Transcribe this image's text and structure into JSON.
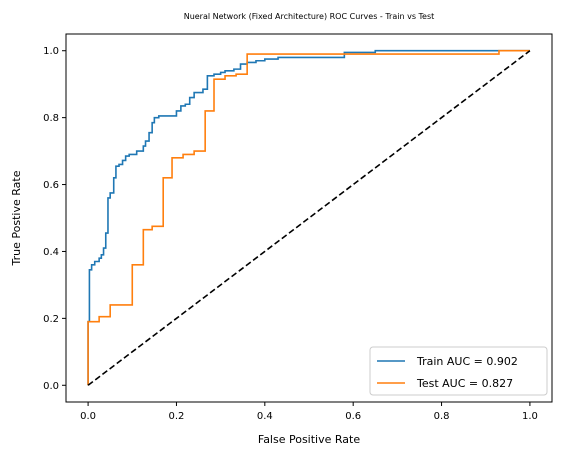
{
  "chart_data": {
    "type": "line",
    "title": "Nueral Network (Fixed Architecture) ROC Curves - Train vs Test",
    "xlabel": "False Positive Rate",
    "ylabel": "True Postive Rate",
    "xlim": [
      -0.05,
      1.05
    ],
    "ylim": [
      -0.05,
      1.05
    ],
    "xticks": [
      "0.0",
      "0.2",
      "0.4",
      "0.6",
      "0.8",
      "1.0"
    ],
    "yticks": [
      "0.0",
      "0.2",
      "0.4",
      "0.6",
      "0.8",
      "1.0"
    ],
    "grid": false,
    "legend_position": "lower-right",
    "series": [
      {
        "name": "Train AUC = 0.902",
        "color": "#1f77b4",
        "step": true,
        "points": [
          [
            0.0,
            0.0
          ],
          [
            0.0,
            0.19
          ],
          [
            0.003,
            0.19
          ],
          [
            0.003,
            0.345
          ],
          [
            0.008,
            0.345
          ],
          [
            0.008,
            0.36
          ],
          [
            0.015,
            0.36
          ],
          [
            0.015,
            0.37
          ],
          [
            0.025,
            0.37
          ],
          [
            0.025,
            0.38
          ],
          [
            0.03,
            0.38
          ],
          [
            0.03,
            0.39
          ],
          [
            0.035,
            0.39
          ],
          [
            0.035,
            0.41
          ],
          [
            0.04,
            0.41
          ],
          [
            0.04,
            0.455
          ],
          [
            0.045,
            0.455
          ],
          [
            0.045,
            0.56
          ],
          [
            0.05,
            0.56
          ],
          [
            0.05,
            0.575
          ],
          [
            0.058,
            0.575
          ],
          [
            0.058,
            0.62
          ],
          [
            0.063,
            0.62
          ],
          [
            0.063,
            0.655
          ],
          [
            0.07,
            0.655
          ],
          [
            0.07,
            0.66
          ],
          [
            0.078,
            0.66
          ],
          [
            0.078,
            0.672
          ],
          [
            0.085,
            0.672
          ],
          [
            0.085,
            0.685
          ],
          [
            0.093,
            0.685
          ],
          [
            0.093,
            0.69
          ],
          [
            0.11,
            0.69
          ],
          [
            0.11,
            0.7
          ],
          [
            0.125,
            0.7
          ],
          [
            0.125,
            0.715
          ],
          [
            0.13,
            0.715
          ],
          [
            0.13,
            0.73
          ],
          [
            0.138,
            0.73
          ],
          [
            0.138,
            0.755
          ],
          [
            0.145,
            0.755
          ],
          [
            0.145,
            0.785
          ],
          [
            0.15,
            0.785
          ],
          [
            0.15,
            0.8
          ],
          [
            0.16,
            0.8
          ],
          [
            0.16,
            0.805
          ],
          [
            0.2,
            0.805
          ],
          [
            0.2,
            0.82
          ],
          [
            0.21,
            0.82
          ],
          [
            0.21,
            0.835
          ],
          [
            0.22,
            0.835
          ],
          [
            0.22,
            0.84
          ],
          [
            0.23,
            0.84
          ],
          [
            0.23,
            0.86
          ],
          [
            0.24,
            0.86
          ],
          [
            0.24,
            0.875
          ],
          [
            0.26,
            0.875
          ],
          [
            0.26,
            0.885
          ],
          [
            0.27,
            0.885
          ],
          [
            0.27,
            0.925
          ],
          [
            0.285,
            0.925
          ],
          [
            0.285,
            0.93
          ],
          [
            0.3,
            0.93
          ],
          [
            0.3,
            0.935
          ],
          [
            0.31,
            0.935
          ],
          [
            0.31,
            0.94
          ],
          [
            0.33,
            0.94
          ],
          [
            0.33,
            0.945
          ],
          [
            0.345,
            0.945
          ],
          [
            0.345,
            0.96
          ],
          [
            0.36,
            0.96
          ],
          [
            0.36,
            0.965
          ],
          [
            0.38,
            0.965
          ],
          [
            0.38,
            0.97
          ],
          [
            0.4,
            0.97
          ],
          [
            0.4,
            0.975
          ],
          [
            0.43,
            0.975
          ],
          [
            0.43,
            0.98
          ],
          [
            0.58,
            0.98
          ],
          [
            0.58,
            0.995
          ],
          [
            0.65,
            0.995
          ],
          [
            0.65,
            1.0
          ],
          [
            1.0,
            1.0
          ]
        ]
      },
      {
        "name": "Test AUC = 0.827",
        "color": "#ff7f0e",
        "step": true,
        "points": [
          [
            0.0,
            0.0
          ],
          [
            0.0,
            0.19
          ],
          [
            0.025,
            0.19
          ],
          [
            0.025,
            0.205
          ],
          [
            0.05,
            0.205
          ],
          [
            0.05,
            0.24
          ],
          [
            0.1,
            0.24
          ],
          [
            0.1,
            0.36
          ],
          [
            0.125,
            0.36
          ],
          [
            0.125,
            0.465
          ],
          [
            0.145,
            0.465
          ],
          [
            0.145,
            0.475
          ],
          [
            0.17,
            0.475
          ],
          [
            0.17,
            0.62
          ],
          [
            0.19,
            0.62
          ],
          [
            0.19,
            0.68
          ],
          [
            0.215,
            0.68
          ],
          [
            0.215,
            0.69
          ],
          [
            0.24,
            0.69
          ],
          [
            0.24,
            0.7
          ],
          [
            0.265,
            0.7
          ],
          [
            0.265,
            0.82
          ],
          [
            0.285,
            0.82
          ],
          [
            0.285,
            0.915
          ],
          [
            0.31,
            0.915
          ],
          [
            0.31,
            0.925
          ],
          [
            0.335,
            0.925
          ],
          [
            0.335,
            0.93
          ],
          [
            0.36,
            0.93
          ],
          [
            0.36,
            0.99
          ],
          [
            0.93,
            0.99
          ],
          [
            0.93,
            1.0
          ],
          [
            1.0,
            1.0
          ]
        ]
      },
      {
        "name": "",
        "color": "#000000",
        "dashed": true,
        "points": [
          [
            0.0,
            0.0
          ],
          [
            1.0,
            1.0
          ]
        ]
      }
    ]
  }
}
